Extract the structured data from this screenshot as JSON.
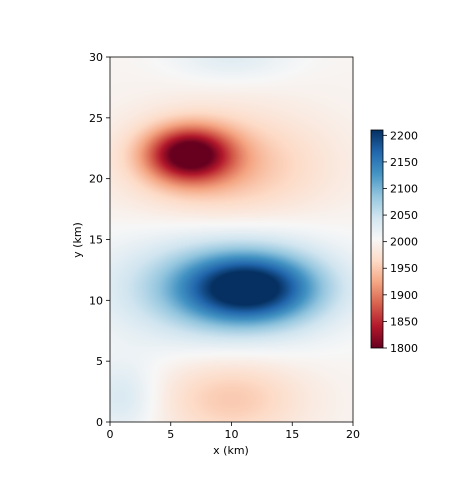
{
  "chart_data": {
    "type": "heatmap",
    "title": "",
    "xlabel": "x (km)",
    "ylabel": "y (km)",
    "xlim": [
      0,
      20
    ],
    "ylim": [
      0,
      30
    ],
    "x_ticks": [
      0,
      5,
      10,
      15,
      20
    ],
    "y_ticks": [
      0,
      5,
      10,
      15,
      20,
      25,
      30
    ],
    "x_tick_labels": [
      "0",
      "5",
      "10",
      "15",
      "20"
    ],
    "y_tick_labels": [
      "0",
      "5",
      "10",
      "15",
      "20",
      "25",
      "30"
    ],
    "colormap": "RdBu",
    "colorbar": {
      "vmin": 1800,
      "vmax": 2210,
      "ticks": [
        1800,
        1850,
        1900,
        1950,
        2000,
        2050,
        2100,
        2150,
        2200
      ],
      "tick_labels": [
        "1800",
        "1850",
        "1900",
        "1950",
        "2000",
        "2050",
        "2100",
        "2150",
        "2200"
      ],
      "placement": "right"
    },
    "background_value": 2000,
    "features": [
      {
        "kind": "low",
        "center_x": 6.5,
        "center_y": 22,
        "radius_x": 3.5,
        "radius_y": 2.2,
        "amplitude": -190
      },
      {
        "kind": "low",
        "center_x": 9.5,
        "center_y": 21,
        "radius_x": 8.0,
        "radius_y": 4.5,
        "amplitude": -60
      },
      {
        "kind": "high",
        "center_x": 11.5,
        "center_y": 11,
        "radius_x": 5.5,
        "radius_y": 2.8,
        "amplitude": 180
      },
      {
        "kind": "high",
        "center_x": 9.0,
        "center_y": 11,
        "radius_x": 9.0,
        "radius_y": 4.5,
        "amplitude": 80
      },
      {
        "kind": "low",
        "center_x": 10.0,
        "center_y": 2,
        "radius_x": 6.0,
        "radius_y": 3.5,
        "amplitude": -50
      },
      {
        "kind": "high",
        "center_x": 1.0,
        "center_y": 2,
        "radius_x": 3.0,
        "radius_y": 3.0,
        "amplitude": 40
      },
      {
        "kind": "high",
        "center_x": 10.0,
        "center_y": 30,
        "radius_x": 5.0,
        "radius_y": 2.0,
        "amplitude": 30
      }
    ],
    "grid": false
  }
}
